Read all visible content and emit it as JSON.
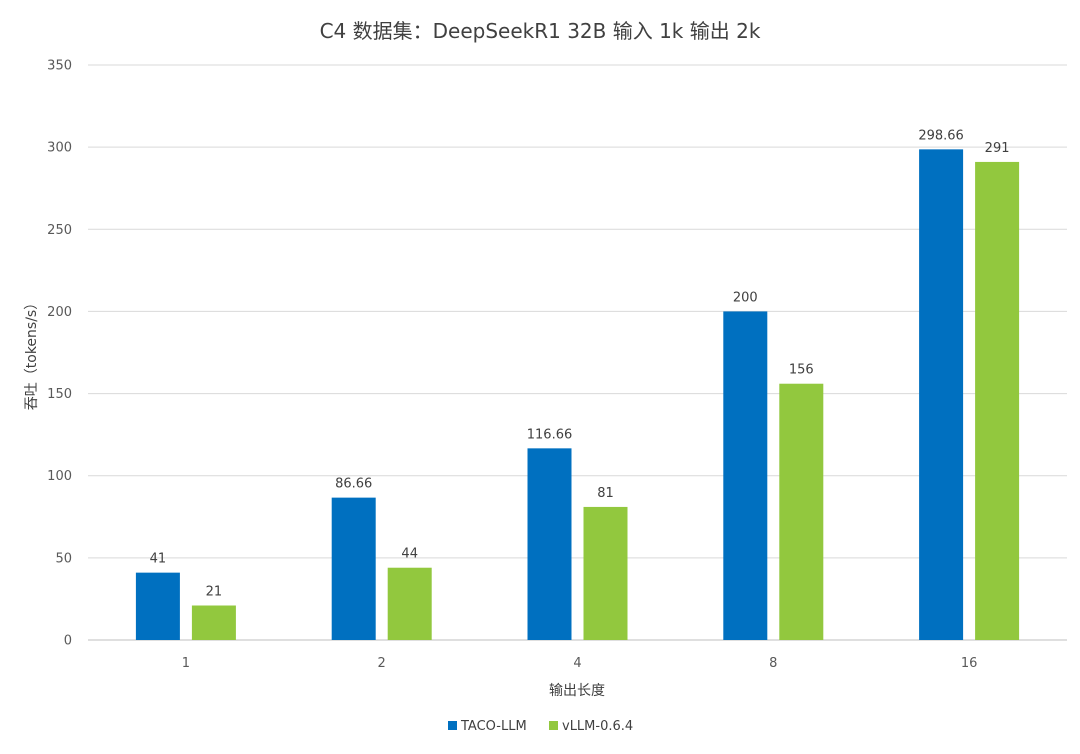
{
  "chart_data": {
    "type": "bar",
    "title": "C4 数据集：DeepSeekR1 32B 输入 1k 输出 2k",
    "xlabel": "输出长度",
    "ylabel": "吞吐（tokens/s）",
    "categories": [
      "1",
      "2",
      "4",
      "8",
      "16"
    ],
    "series": [
      {
        "name": "TACO-LLM",
        "color": "#0070C0",
        "values": [
          41,
          86.66,
          116.66,
          200,
          298.66
        ],
        "labels": [
          "41",
          "86.66",
          "116.66",
          "200",
          "298.66"
        ]
      },
      {
        "name": "vLLM-0.6.4",
        "color": "#92C83E",
        "values": [
          21,
          44,
          81,
          156,
          291
        ],
        "labels": [
          "21",
          "44",
          "81",
          "156",
          "291"
        ]
      }
    ],
    "ylim": [
      0,
      350
    ],
    "yticks": [
      0,
      50,
      100,
      150,
      200,
      250,
      300,
      350
    ],
    "grid": true,
    "legend_position": "bottom"
  }
}
